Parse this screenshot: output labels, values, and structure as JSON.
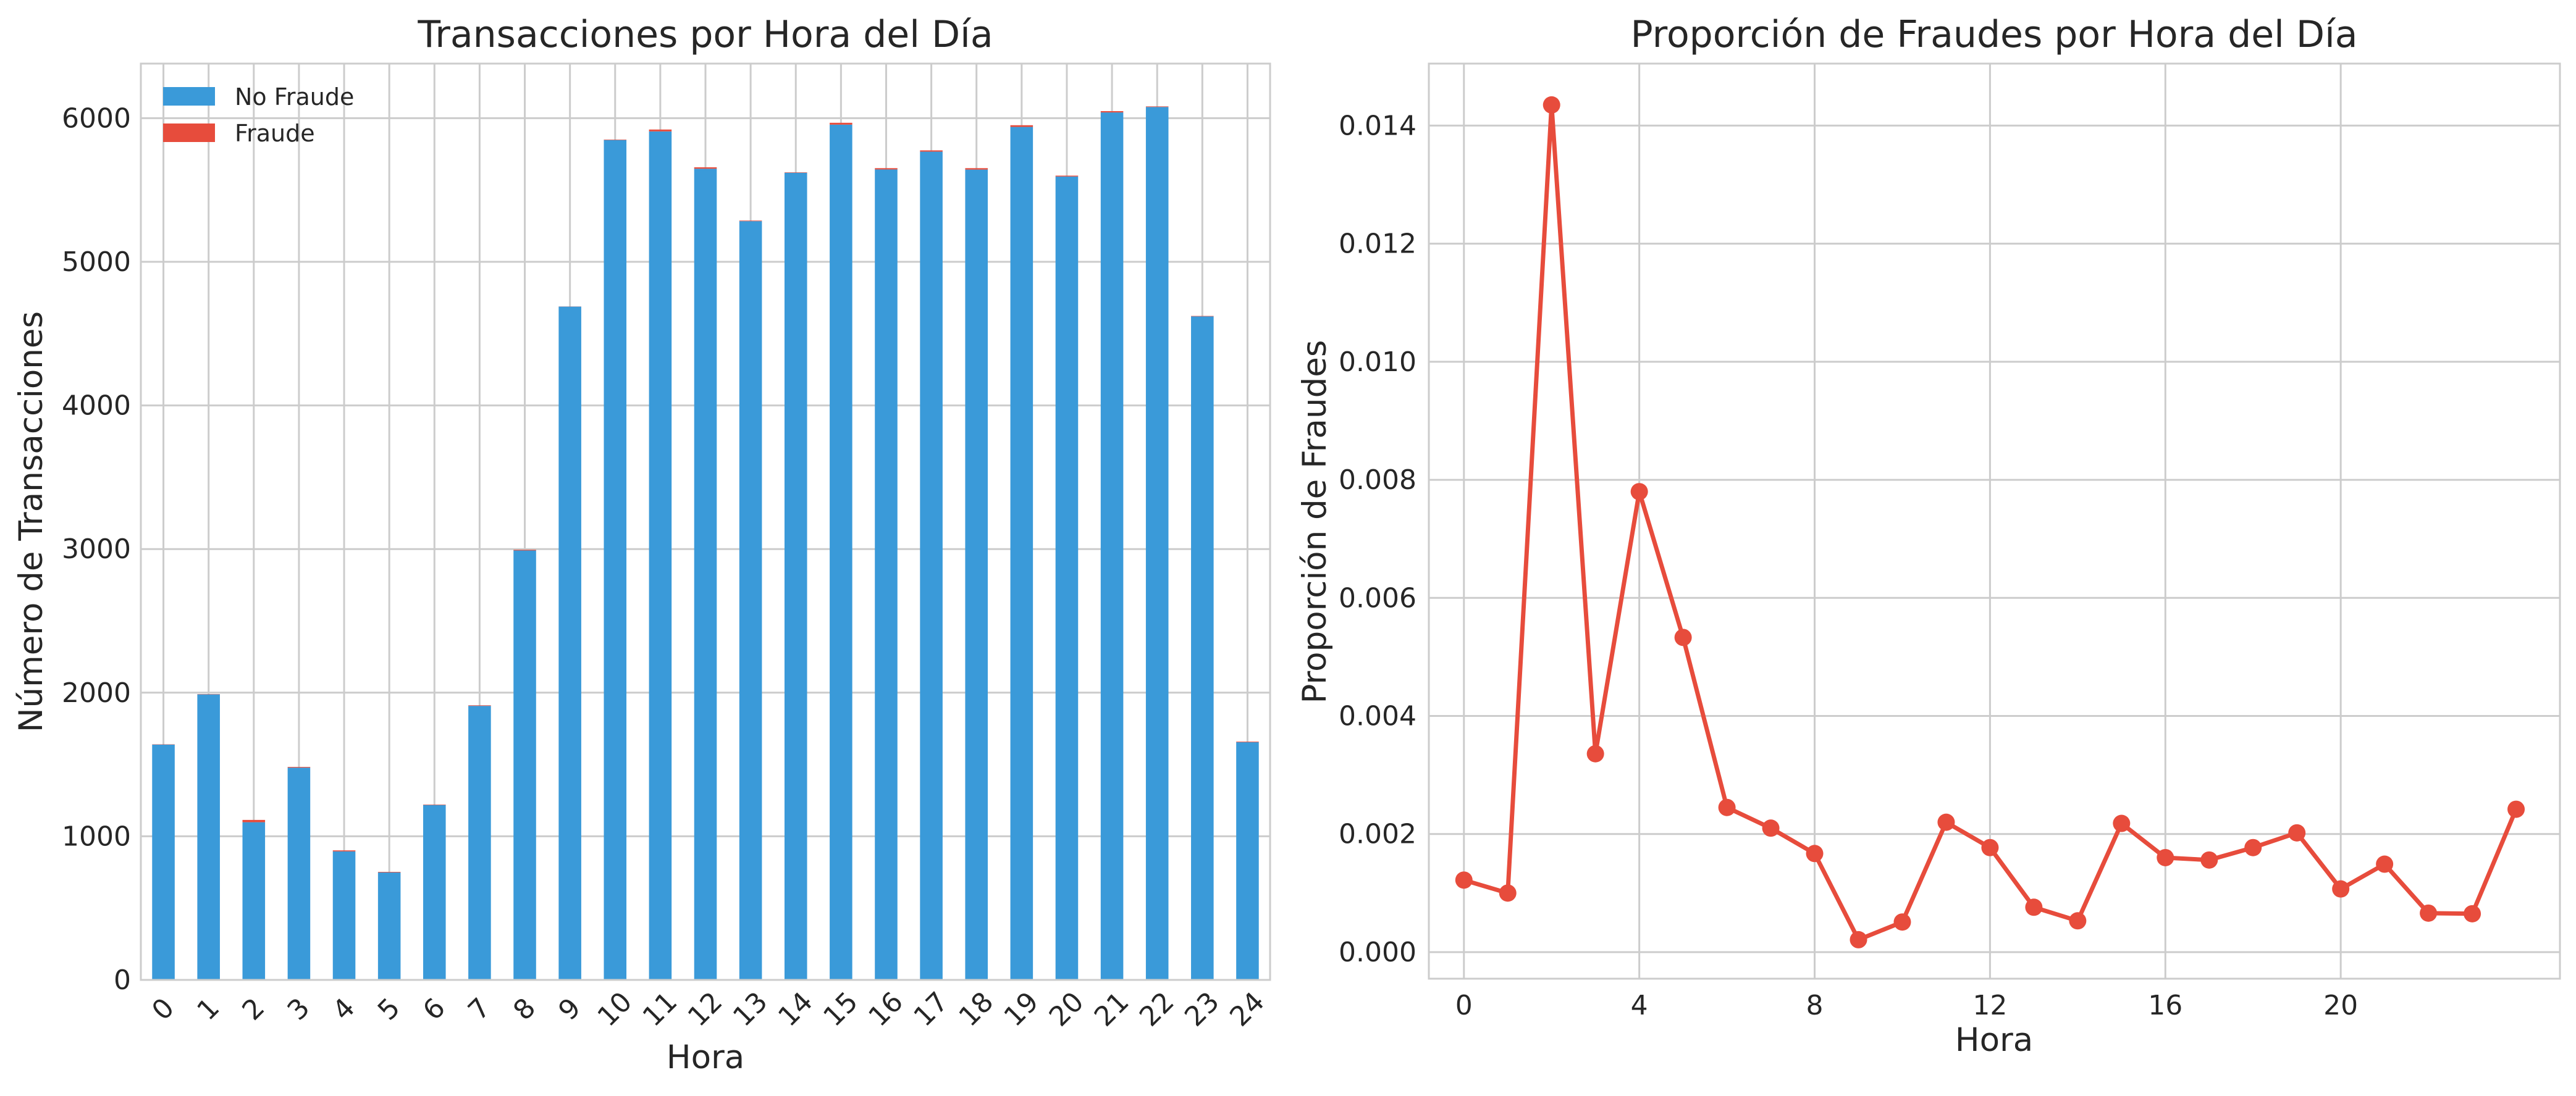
{
  "chart_data": [
    {
      "type": "bar",
      "stacked": true,
      "title": "Transacciones por Hora del Día",
      "xlabel": "Hora",
      "ylabel": "Número de Transacciones",
      "categories": [
        "0",
        "1",
        "2",
        "3",
        "4",
        "5",
        "6",
        "7",
        "8",
        "9",
        "10",
        "11",
        "12",
        "13",
        "14",
        "15",
        "16",
        "17",
        "18",
        "19",
        "20",
        "21",
        "22",
        "23",
        "24"
      ],
      "series": [
        {
          "name": "No Fraude",
          "color": "#3a9ad9",
          "values": [
            1638,
            1988,
            1098,
            1478,
            895,
            748,
            1218,
            1908,
            2990,
            4688,
            5848,
            5908,
            5648,
            5283,
            5620,
            5955,
            5643,
            5767,
            5642,
            5939,
            5594,
            6040,
            6078,
            4620,
            1655
          ]
        },
        {
          "name": "Fraude",
          "color": "#e74c3c",
          "values": [
            2,
            2,
            16,
            5,
            7,
            4,
            3,
            4,
            5,
            1,
            3,
            13,
            10,
            4,
            3,
            13,
            9,
            9,
            10,
            12,
            6,
            9,
            4,
            3,
            4
          ]
        }
      ],
      "ylim": [
        0,
        6380
      ],
      "yticks": [
        0,
        1000,
        2000,
        3000,
        4000,
        5000,
        6000
      ],
      "grid": true,
      "legend_position": "top-left"
    },
    {
      "type": "line",
      "title": "Proporción de Fraudes por Hora del Día",
      "xlabel": "Hora",
      "ylabel": "Proporción de Fraudes",
      "color": "#e74c3c",
      "x": [
        0,
        1,
        2,
        3,
        4,
        5,
        6,
        7,
        8,
        9,
        10,
        11,
        12,
        13,
        14,
        15,
        16,
        17,
        18,
        19,
        20,
        21,
        22,
        23,
        24
      ],
      "y": [
        0.00122,
        0.001,
        0.01435,
        0.00336,
        0.0078,
        0.00533,
        0.00245,
        0.0021,
        0.00167,
        0.00021,
        0.00051,
        0.0022,
        0.00177,
        0.00076,
        0.00053,
        0.00218,
        0.0016,
        0.00156,
        0.00177,
        0.00202,
        0.00107,
        0.00149,
        0.00066,
        0.00065,
        0.00242
      ],
      "xlim": [
        -0.8,
        25.0
      ],
      "ylim": [
        -0.00045,
        0.01505
      ],
      "xticks": [
        0,
        4,
        8,
        12,
        16,
        20
      ],
      "yticks": [
        0.0,
        0.002,
        0.004,
        0.006,
        0.008,
        0.01,
        0.012,
        0.014
      ],
      "ytick_labels": [
        "0.000",
        "0.002",
        "0.004",
        "0.006",
        "0.008",
        "0.010",
        "0.012",
        "0.014"
      ],
      "grid": true
    }
  ]
}
